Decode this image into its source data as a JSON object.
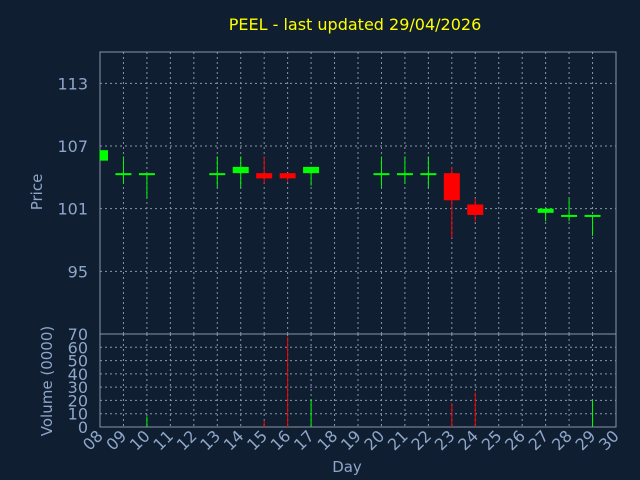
{
  "chart_data": {
    "type": "candlestick",
    "title": "PEEL - last updated 29/04/2026",
    "price_panel": {
      "ylabel": "Price",
      "ylim": [
        89,
        116
      ],
      "yticks": [
        95,
        101,
        107,
        113
      ],
      "grid": true
    },
    "volume_panel": {
      "ylabel": "Volume (0000)",
      "ylim": [
        0,
        70
      ],
      "yticks": [
        0,
        10,
        20,
        30,
        40,
        50,
        60,
        70
      ],
      "grid": true
    },
    "xlabel": "Day",
    "x_ticks": [
      "08",
      "09",
      "10",
      "11",
      "12",
      "13",
      "14",
      "15",
      "16",
      "17",
      "18",
      "19",
      "20",
      "21",
      "22",
      "23",
      "24",
      "25",
      "26",
      "27",
      "28",
      "29",
      "30"
    ],
    "colors": {
      "up": "#00ff00",
      "down": "#ff0000",
      "title": "#ffff00",
      "axis": "#8ea6c8",
      "background": "#0f1e30"
    },
    "candles": [
      {
        "day": "08",
        "open": 105.6,
        "high": 106.6,
        "low": 105.6,
        "close": 106.6,
        "volume": 0
      },
      {
        "day": "09",
        "open": 104.4,
        "high": 106.0,
        "low": 103.4,
        "close": 104.4,
        "volume": 0
      },
      {
        "day": "10",
        "open": 104.4,
        "high": 104.4,
        "low": 102.0,
        "close": 104.4,
        "volume": 8
      },
      {
        "day": "13",
        "open": 104.4,
        "high": 106.0,
        "low": 103.0,
        "close": 104.4,
        "volume": 0
      },
      {
        "day": "14",
        "open": 104.4,
        "high": 106.0,
        "low": 103.0,
        "close": 105.0,
        "volume": 0
      },
      {
        "day": "15",
        "open": 104.4,
        "high": 106.0,
        "low": 103.4,
        "close": 103.9,
        "volume": 5
      },
      {
        "day": "16",
        "open": 104.4,
        "high": 104.4,
        "low": 103.6,
        "close": 103.9,
        "volume": 68
      },
      {
        "day": "17",
        "open": 104.4,
        "high": 105.0,
        "low": 103.2,
        "close": 105.0,
        "volume": 21
      },
      {
        "day": "20",
        "open": 104.4,
        "high": 106.0,
        "low": 103.0,
        "close": 104.4,
        "volume": 0
      },
      {
        "day": "21",
        "open": 104.4,
        "high": 106.0,
        "low": 103.4,
        "close": 104.4,
        "volume": 0
      },
      {
        "day": "22",
        "open": 104.4,
        "high": 106.0,
        "low": 103.0,
        "close": 104.4,
        "volume": 0
      },
      {
        "day": "23",
        "open": 104.4,
        "high": 105.0,
        "low": 98.2,
        "close": 101.8,
        "volume": 18
      },
      {
        "day": "24",
        "open": 101.4,
        "high": 102.0,
        "low": 99.8,
        "close": 100.4,
        "volume": 26
      },
      {
        "day": "27",
        "open": 100.6,
        "high": 101.0,
        "low": 99.8,
        "close": 101.0,
        "volume": 0
      },
      {
        "day": "28",
        "open": 100.4,
        "high": 102.0,
        "low": 99.8,
        "close": 100.4,
        "volume": 0
      },
      {
        "day": "29",
        "open": 100.4,
        "high": 100.4,
        "low": 98.4,
        "close": 100.4,
        "volume": 20
      }
    ]
  }
}
